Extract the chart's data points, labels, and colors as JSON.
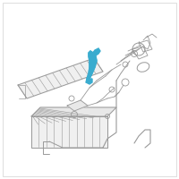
{
  "background_color": "#ffffff",
  "line_color": "#999999",
  "highlight_color": "#3aaccf",
  "lw": 0.6,
  "figsize": [
    2.0,
    2.0
  ],
  "dpi": 100
}
